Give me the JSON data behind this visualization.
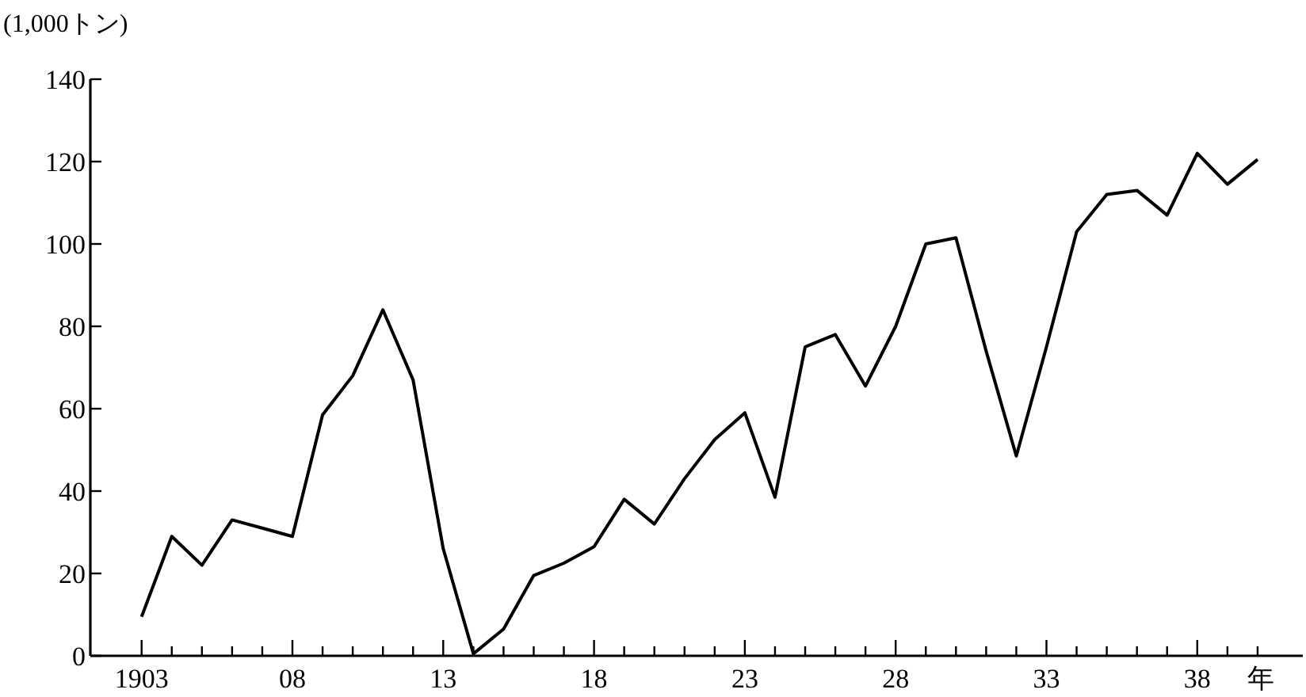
{
  "chart_data": {
    "type": "line",
    "ylabel": "(1,000トン)",
    "xlabel": "年",
    "x": [
      1903,
      1904,
      1905,
      1906,
      1907,
      1908,
      1909,
      1910,
      1911,
      1912,
      1913,
      1914,
      1915,
      1916,
      1917,
      1918,
      1919,
      1920,
      1921,
      1922,
      1923,
      1924,
      1925,
      1926,
      1927,
      1928,
      1929,
      1930,
      1931,
      1932,
      1933,
      1934,
      1935,
      1936,
      1937,
      1938,
      1939,
      1940
    ],
    "series": [
      {
        "color": "#000000",
        "values": [
          9.5,
          29,
          22,
          33,
          31,
          29,
          58.5,
          68,
          84,
          67,
          26,
          0.5,
          6.5,
          19.5,
          22.5,
          26.5,
          38,
          32,
          43,
          52.5,
          59,
          38.5,
          75,
          78,
          65.5,
          80,
          100,
          101.5,
          74,
          48.5,
          75,
          103,
          112,
          113,
          107,
          122,
          114.5,
          120.5
        ]
      }
    ],
    "xlim": [
      1901.3,
      1941.5
    ],
    "ylim": [
      0,
      140
    ],
    "yticks": [
      0,
      20,
      40,
      60,
      80,
      100,
      120,
      140
    ],
    "xticks": [
      {
        "value": 1903,
        "label": "1903"
      },
      {
        "value": 1904,
        "label": null
      },
      {
        "value": 1905,
        "label": null
      },
      {
        "value": 1906,
        "label": null
      },
      {
        "value": 1907,
        "label": null
      },
      {
        "value": 1908,
        "label": "08"
      },
      {
        "value": 1909,
        "label": null
      },
      {
        "value": 1910,
        "label": null
      },
      {
        "value": 1911,
        "label": null
      },
      {
        "value": 1912,
        "label": null
      },
      {
        "value": 1913,
        "label": "13"
      },
      {
        "value": 1914,
        "label": null
      },
      {
        "value": 1915,
        "label": null
      },
      {
        "value": 1916,
        "label": null
      },
      {
        "value": 1917,
        "label": null
      },
      {
        "value": 1918,
        "label": "18"
      },
      {
        "value": 1919,
        "label": null
      },
      {
        "value": 1920,
        "label": null
      },
      {
        "value": 1921,
        "label": null
      },
      {
        "value": 1922,
        "label": null
      },
      {
        "value": 1923,
        "label": "23"
      },
      {
        "value": 1924,
        "label": null
      },
      {
        "value": 1925,
        "label": null
      },
      {
        "value": 1926,
        "label": null
      },
      {
        "value": 1927,
        "label": null
      },
      {
        "value": 1928,
        "label": "28"
      },
      {
        "value": 1929,
        "label": null
      },
      {
        "value": 1930,
        "label": null
      },
      {
        "value": 1931,
        "label": null
      },
      {
        "value": 1932,
        "label": null
      },
      {
        "value": 1933,
        "label": "33"
      },
      {
        "value": 1934,
        "label": null
      },
      {
        "value": 1935,
        "label": null
      },
      {
        "value": 1936,
        "label": null
      },
      {
        "value": 1937,
        "label": null
      },
      {
        "value": 1938,
        "label": "38"
      },
      {
        "value": 1939,
        "label": null
      },
      {
        "value": 1940,
        "label": null
      }
    ],
    "marker": "none",
    "line_style": "solid"
  }
}
